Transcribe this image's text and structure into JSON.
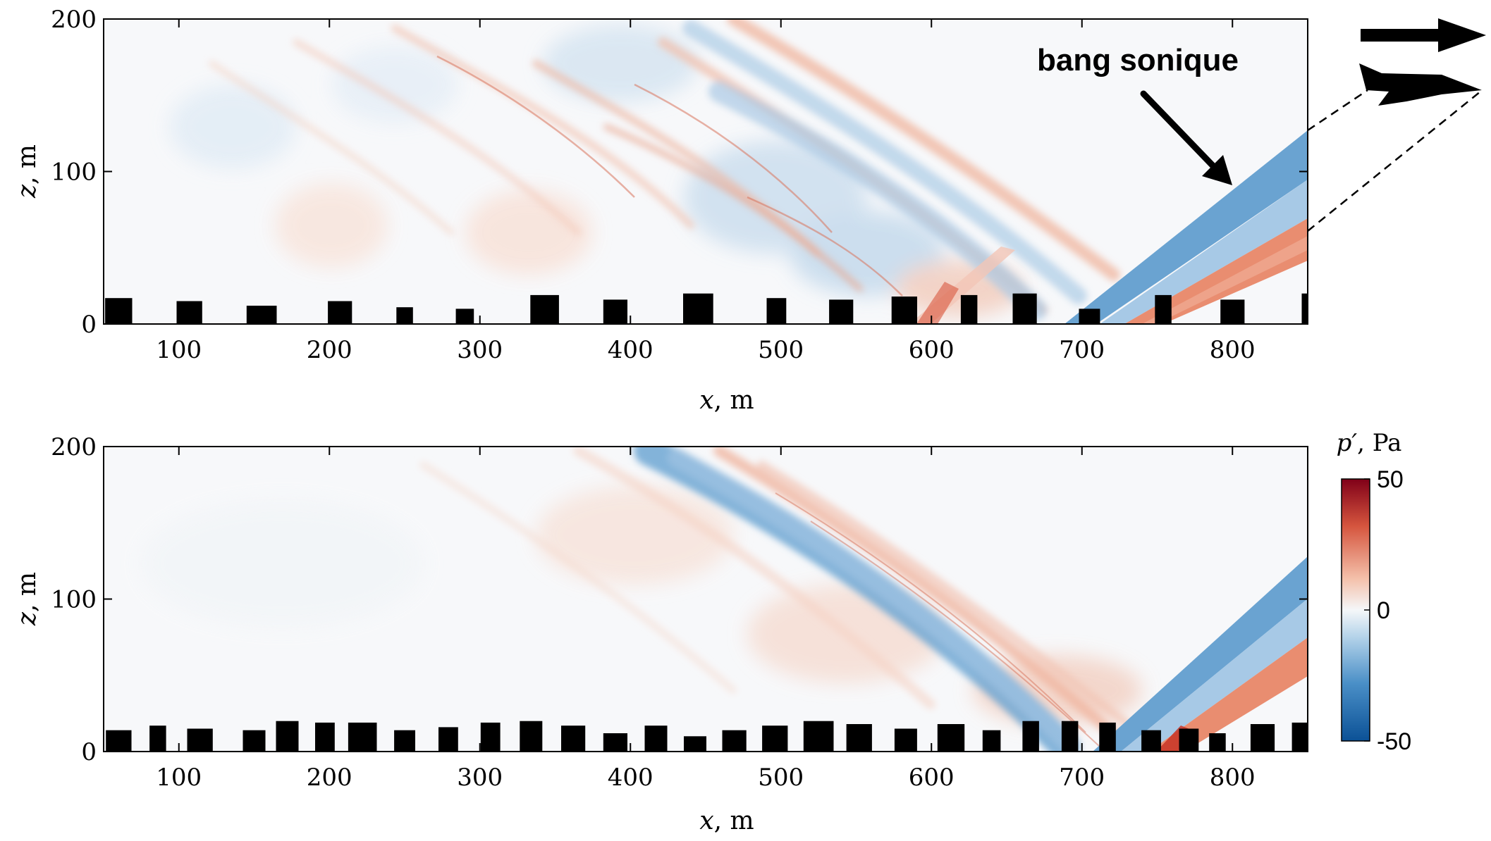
{
  "figure": {
    "annotation_label": "bang sonique",
    "annotation_arrow_icon": "arrow-down-right-icon",
    "flight_direction_icon": "arrow-right-icon",
    "aircraft_icon": "aircraft-silhouette-icon"
  },
  "colorbar": {
    "label_var": "p′",
    "label_unit": "Pa",
    "ticks": [
      "50",
      "0",
      "-50"
    ],
    "range": [
      -50,
      50
    ],
    "colors": [
      "#0b5196",
      "#4a8fc7",
      "#b6d4ea",
      "#f5f7f9",
      "#f4c0aa",
      "#d5553e",
      "#800018"
    ]
  },
  "chart_data": [
    {
      "type": "heatmap",
      "title": "",
      "xlabel_var": "x",
      "xlabel_unit": "m",
      "ylabel_var": "z",
      "ylabel_unit": "m",
      "xlim": [
        50,
        850
      ],
      "ylim": [
        0,
        200
      ],
      "xticks": [
        "100",
        "200",
        "300",
        "400",
        "500",
        "600",
        "700",
        "800"
      ],
      "yticks": [
        "0",
        "100",
        "200"
      ],
      "field": "p′ (Pa)",
      "buildings": [
        {
          "x": 60,
          "w": 18,
          "h": 17
        },
        {
          "x": 107,
          "w": 17,
          "h": 15
        },
        {
          "x": 155,
          "w": 20,
          "h": 12
        },
        {
          "x": 207,
          "w": 16,
          "h": 15
        },
        {
          "x": 250,
          "w": 11,
          "h": 11
        },
        {
          "x": 290,
          "w": 12,
          "h": 10
        },
        {
          "x": 343,
          "w": 19,
          "h": 19
        },
        {
          "x": 390,
          "w": 16,
          "h": 16
        },
        {
          "x": 445,
          "w": 20,
          "h": 20
        },
        {
          "x": 497,
          "w": 13,
          "h": 17
        },
        {
          "x": 540,
          "w": 16,
          "h": 16
        },
        {
          "x": 582,
          "w": 17,
          "h": 18
        },
        {
          "x": 625,
          "w": 11,
          "h": 19
        },
        {
          "x": 662,
          "w": 16,
          "h": 20
        },
        {
          "x": 705,
          "w": 14,
          "h": 10
        },
        {
          "x": 754,
          "w": 11,
          "h": 19
        },
        {
          "x": 800,
          "w": 16,
          "h": 16
        },
        {
          "x": 848,
          "w": 4,
          "h": 20
        }
      ]
    },
    {
      "type": "heatmap",
      "title": "",
      "xlabel_var": "x",
      "xlabel_unit": "m",
      "ylabel_var": "z",
      "ylabel_unit": "m",
      "xlim": [
        50,
        850
      ],
      "ylim": [
        0,
        200
      ],
      "xticks": [
        "100",
        "200",
        "300",
        "400",
        "500",
        "600",
        "700",
        "800"
      ],
      "yticks": [
        "0",
        "100",
        "200"
      ],
      "field": "p′ (Pa)",
      "buildings": [
        {
          "x": 60,
          "w": 17,
          "h": 14
        },
        {
          "x": 86,
          "w": 11,
          "h": 17
        },
        {
          "x": 114,
          "w": 17,
          "h": 15
        },
        {
          "x": 150,
          "w": 15,
          "h": 14
        },
        {
          "x": 172,
          "w": 15,
          "h": 20
        },
        {
          "x": 197,
          "w": 13,
          "h": 19
        },
        {
          "x": 222,
          "w": 19,
          "h": 19
        },
        {
          "x": 250,
          "w": 14,
          "h": 14
        },
        {
          "x": 279,
          "w": 13,
          "h": 16
        },
        {
          "x": 307,
          "w": 13,
          "h": 19
        },
        {
          "x": 334,
          "w": 15,
          "h": 20
        },
        {
          "x": 362,
          "w": 16,
          "h": 17
        },
        {
          "x": 390,
          "w": 16,
          "h": 12
        },
        {
          "x": 417,
          "w": 15,
          "h": 17
        },
        {
          "x": 443,
          "w": 15,
          "h": 10
        },
        {
          "x": 469,
          "w": 16,
          "h": 14
        },
        {
          "x": 496,
          "w": 17,
          "h": 17
        },
        {
          "x": 525,
          "w": 20,
          "h": 20
        },
        {
          "x": 552,
          "w": 17,
          "h": 18
        },
        {
          "x": 583,
          "w": 15,
          "h": 15
        },
        {
          "x": 613,
          "w": 18,
          "h": 18
        },
        {
          "x": 640,
          "w": 12,
          "h": 14
        },
        {
          "x": 666,
          "w": 11,
          "h": 20
        },
        {
          "x": 692,
          "w": 11,
          "h": 20
        },
        {
          "x": 717,
          "w": 11,
          "h": 19
        },
        {
          "x": 746,
          "w": 13,
          "h": 14
        },
        {
          "x": 771,
          "w": 13,
          "h": 15
        },
        {
          "x": 790,
          "w": 11,
          "h": 12
        },
        {
          "x": 820,
          "w": 16,
          "h": 18
        },
        {
          "x": 845,
          "w": 11,
          "h": 19
        }
      ]
    }
  ]
}
